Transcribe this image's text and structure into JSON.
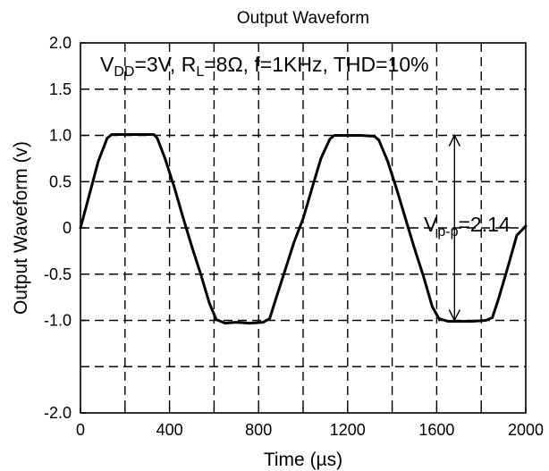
{
  "chart_data": {
    "type": "line",
    "title": "Output Waveform",
    "xlabel": "Time (µs)",
    "ylabel": "Output Waveform (v)",
    "xlim": [
      0,
      2000
    ],
    "ylim": [
      -2.0,
      2.0
    ],
    "grid": true,
    "x_ticks": [
      0,
      200,
      400,
      600,
      800,
      1000,
      1200,
      1400,
      1600,
      1800,
      2000
    ],
    "x_tick_labels": [
      "0",
      "",
      "400",
      "",
      "800",
      "",
      "1200",
      "",
      "1600",
      "",
      "2000"
    ],
    "y_ticks": [
      2.0,
      1.5,
      1.0,
      0.5,
      0.0,
      -0.5,
      -1.0,
      -1.5,
      -2.0
    ],
    "y_tick_labels": [
      "2.0",
      "1.5",
      "1.0",
      "0.5",
      "0",
      "-0.5",
      "-1.0",
      "",
      "-2.0"
    ],
    "conditions": {
      "vdd_main": "V",
      "vdd_sub": "DD",
      "vdd_value": "=3V, ",
      "rl_main": "R",
      "rl_sub": "L",
      "rest": "=8Ω, f=1KHz, THD=10%"
    },
    "annotation": {
      "main": "V",
      "sub": "p-p",
      "value": "=2.14",
      "from_y": 1.0,
      "to_y": -1.0,
      "at_x": 1680
    },
    "series": [
      {
        "x": [
          0,
          40,
          80,
          120,
          140,
          200,
          260,
          330,
          345,
          380,
          420,
          460,
          500,
          540,
          580,
          610,
          650,
          700,
          760,
          820,
          850,
          880,
          920,
          960,
          1000,
          1040,
          1080,
          1120,
          1140,
          1200,
          1260,
          1320,
          1340,
          1380,
          1420,
          1460,
          1500,
          1540,
          1580,
          1610,
          1650,
          1700,
          1760,
          1820,
          1850,
          1880,
          1920,
          1960,
          2000
        ],
        "y": [
          0.0,
          0.36,
          0.72,
          0.97,
          1.01,
          1.01,
          1.01,
          1.01,
          0.97,
          0.75,
          0.45,
          0.12,
          -0.2,
          -0.5,
          -0.82,
          -0.99,
          -1.03,
          -1.02,
          -1.03,
          -1.02,
          -0.98,
          -0.75,
          -0.45,
          -0.15,
          0.1,
          0.43,
          0.75,
          0.96,
          1.0,
          1.0,
          1.0,
          0.99,
          0.95,
          0.72,
          0.42,
          0.1,
          -0.22,
          -0.52,
          -0.85,
          -0.98,
          -1.01,
          -1.01,
          -1.01,
          -1.0,
          -0.97,
          -0.75,
          -0.42,
          -0.08,
          0.02
        ]
      }
    ]
  }
}
